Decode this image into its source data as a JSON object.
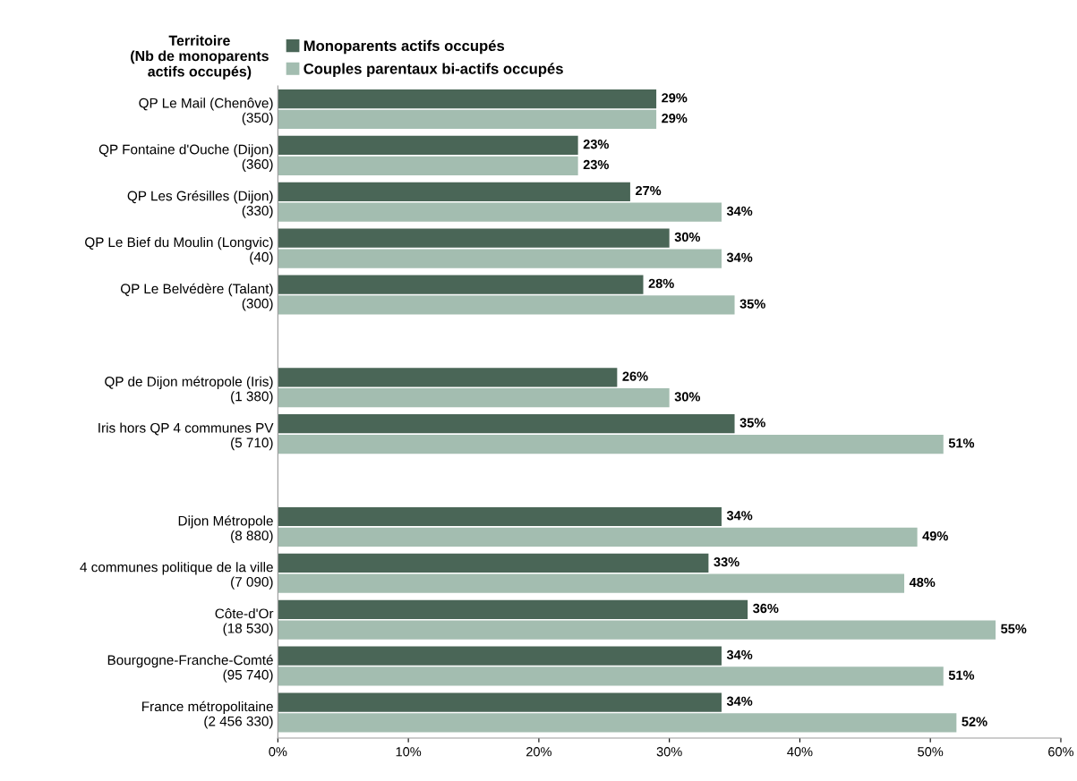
{
  "chart_data": {
    "type": "bar",
    "orientation": "horizontal",
    "ylabel": "Territoire\n(Nb de monoparents\nactifs occupés)",
    "categories": [
      "QP Le Mail (Chenôve)\n(350)",
      "QP Fontaine d'Ouche (Dijon)\n(360)",
      "QP Les Grésilles (Dijon)\n(330)",
      "QP Le Bief du Moulin (Longvic)\n(40)",
      "QP Le Belvédère (Talant)\n(300)",
      null,
      "QP de Dijon métropole (Iris)\n(1 380)",
      "Iris hors QP 4 communes PV\n(5 710)",
      null,
      "Dijon Métropole\n(8 880)",
      "4 communes politique de la ville\n(7 090)",
      "Côte-d'Or\n(18 530)",
      "Bourgogne-Franche-Comté\n(95 740)",
      "France métropolitaine\n(2 456 330)"
    ],
    "series": [
      {
        "name": "Monoparents actifs occupés",
        "color": "#4a6657",
        "values": [
          29,
          23,
          27,
          30,
          28,
          null,
          26,
          35,
          null,
          34,
          33,
          36,
          34,
          34
        ],
        "value_labels": [
          "29%",
          "23%",
          "27%",
          "30%",
          "28%",
          null,
          "26%",
          "35%",
          null,
          "34%",
          "33%",
          "36%",
          "34%",
          "34%"
        ]
      },
      {
        "name": "Couples parentaux bi-actifs occupés",
        "color": "#a3bdb0",
        "values": [
          29,
          23,
          34,
          34,
          35,
          null,
          30,
          51,
          null,
          49,
          48,
          55,
          51,
          52
        ],
        "value_labels": [
          "29%",
          "23%",
          "34%",
          "34%",
          "35%",
          null,
          "30%",
          "51%",
          null,
          "49%",
          "48%",
          "55%",
          "51%",
          "52%"
        ]
      }
    ],
    "xlim": [
      0,
      60
    ],
    "xticks": [
      {
        "value": 0,
        "label": "0%"
      },
      {
        "value": 10,
        "label": "10%"
      },
      {
        "value": 20,
        "label": "20%"
      },
      {
        "value": 30,
        "label": "30%"
      },
      {
        "value": 40,
        "label": "40%"
      },
      {
        "value": 50,
        "label": "50%"
      },
      {
        "value": 60,
        "label": "60%"
      }
    ],
    "legend": "top left",
    "grid": false
  }
}
